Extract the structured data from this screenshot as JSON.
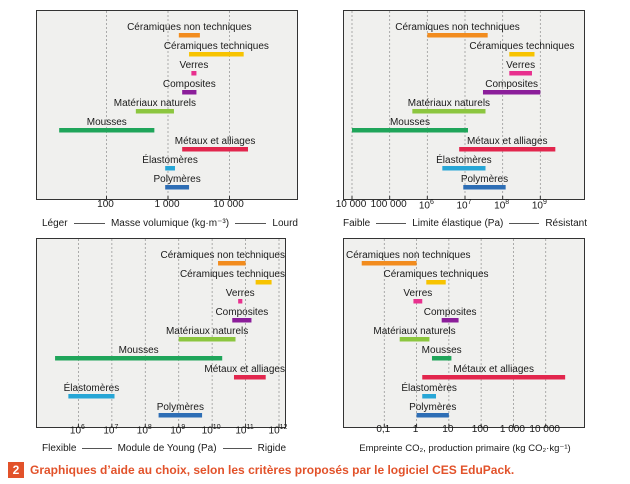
{
  "figure": {
    "number": "2",
    "caption": "Graphiques d’aide au choix, selon les critères proposés par le logiciel CES EduPack."
  },
  "chart_data": [
    {
      "type": "bar",
      "orientation": "horizontal-range",
      "scale": "log",
      "xlim": [
        10,
        100000
      ],
      "ticks": [
        {
          "value": 100,
          "label": "100"
        },
        {
          "value": 1000,
          "label": "1 000"
        },
        {
          "value": 10000,
          "label": "10 000"
        }
      ],
      "xlabel": "Masse volumique (kg·m⁻³)",
      "axis_left": "Léger",
      "axis_right": "Lourd",
      "grid": true,
      "series": [
        {
          "name": "Céramiques non techniques",
          "range": [
            1500,
            3300
          ],
          "color": "#f28c1e"
        },
        {
          "name": "Céramiques techniques",
          "range": [
            2200,
            17000
          ],
          "color": "#f7c300"
        },
        {
          "name": "Verres",
          "range": [
            2400,
            2900
          ],
          "color": "#e8308e"
        },
        {
          "name": "Composites",
          "range": [
            1700,
            2900
          ],
          "color": "#8b1e9a"
        },
        {
          "name": "Matériaux naturels",
          "range": [
            300,
            1250
          ],
          "color": "#8cc63f"
        },
        {
          "name": "Mousses",
          "range": [
            17,
            600
          ],
          "color": "#1fa55a"
        },
        {
          "name": "Métaux et alliages",
          "range": [
            1700,
            20000
          ],
          "color": "#e2264d"
        },
        {
          "name": "Élastomères",
          "range": [
            900,
            1300
          ],
          "color": "#27a6d6"
        },
        {
          "name": "Polymères",
          "range": [
            900,
            2200
          ],
          "color": "#2e6eb5"
        }
      ]
    },
    {
      "type": "bar",
      "orientation": "horizontal-range",
      "scale": "log",
      "xlim": [
        10000,
        10000000000
      ],
      "ticks": [
        {
          "value": 10000,
          "label": "10 000"
        },
        {
          "value": 100000,
          "label": "100 000"
        },
        {
          "value": 1000000,
          "label": "10",
          "exp": "6"
        },
        {
          "value": 10000000,
          "label": "10",
          "exp": "7"
        },
        {
          "value": 100000000,
          "label": "10",
          "exp": "8"
        },
        {
          "value": 1000000000,
          "label": "10",
          "exp": "9"
        }
      ],
      "xlabel": "Limite élastique (Pa)",
      "axis_left": "Faible",
      "axis_right": "Résistant",
      "grid": true,
      "series": [
        {
          "name": "Céramiques non techniques",
          "range": [
            1000000,
            40000000
          ],
          "color": "#f28c1e"
        },
        {
          "name": "Céramiques techniques",
          "range": [
            150000000,
            700000000
          ],
          "color": "#f7c300"
        },
        {
          "name": "Verres",
          "range": [
            150000000,
            600000000
          ],
          "color": "#e8308e"
        },
        {
          "name": "Composites",
          "range": [
            30000000,
            1000000000
          ],
          "color": "#8b1e9a"
        },
        {
          "name": "Matériaux naturels",
          "range": [
            400000,
            35000000
          ],
          "color": "#8cc63f"
        },
        {
          "name": "Mousses",
          "range": [
            10000,
            12000000
          ],
          "color": "#1fa55a"
        },
        {
          "name": "Métaux et alliages",
          "range": [
            7000000,
            2500000000
          ],
          "color": "#e2264d"
        },
        {
          "name": "Élastomères",
          "range": [
            2500000,
            35000000
          ],
          "color": "#27a6d6"
        },
        {
          "name": "Polymères",
          "range": [
            9000000,
            120000000
          ],
          "color": "#2e6eb5"
        }
      ]
    },
    {
      "type": "bar",
      "orientation": "horizontal-range",
      "scale": "log",
      "xlim": [
        100000,
        1000000000000
      ],
      "ticks": [
        {
          "value": 1000000,
          "label": "10",
          "exp": "6"
        },
        {
          "value": 10000000,
          "label": "10",
          "exp": "7"
        },
        {
          "value": 100000000,
          "label": "10",
          "exp": "8"
        },
        {
          "value": 1000000000,
          "label": "10",
          "exp": "9"
        },
        {
          "value": 10000000000,
          "label": "10",
          "exp": "10"
        },
        {
          "value": 100000000000,
          "label": "10",
          "exp": "11"
        },
        {
          "value": 1000000000000,
          "label": "10",
          "exp": "12"
        }
      ],
      "xlabel": "Module de Young (Pa)",
      "axis_left": "Flexible",
      "axis_right": "Rigide",
      "grid": true,
      "series": [
        {
          "name": "Céramiques non techniques",
          "range": [
            15000000000,
            100000000000
          ],
          "color": "#f28c1e"
        },
        {
          "name": "Céramiques techniques",
          "range": [
            200000000000,
            600000000000
          ],
          "color": "#f7c300"
        },
        {
          "name": "Verres",
          "range": [
            60000000000,
            80000000000
          ],
          "color": "#e8308e"
        },
        {
          "name": "Composites",
          "range": [
            40000000000,
            150000000000
          ],
          "color": "#8b1e9a"
        },
        {
          "name": "Matériaux naturels",
          "range": [
            1000000000,
            50000000000
          ],
          "color": "#8cc63f"
        },
        {
          "name": "Mousses",
          "range": [
            200000,
            20000000000
          ],
          "color": "#1fa55a"
        },
        {
          "name": "Métaux et alliages",
          "range": [
            45000000000,
            400000000000
          ],
          "color": "#e2264d"
        },
        {
          "name": "Élastomères",
          "range": [
            500000,
            12000000
          ],
          "color": "#27a6d6"
        },
        {
          "name": "Polymères",
          "range": [
            250000000,
            5000000000
          ],
          "color": "#2e6eb5"
        }
      ]
    },
    {
      "type": "bar",
      "orientation": "horizontal-range",
      "scale": "log",
      "xlim": [
        0.01,
        100000
      ],
      "ticks": [
        {
          "value": 0.1,
          "label": "0,1"
        },
        {
          "value": 1,
          "label": "1"
        },
        {
          "value": 10,
          "label": "10"
        },
        {
          "value": 100,
          "label": "100"
        },
        {
          "value": 1000,
          "label": "1 000"
        },
        {
          "value": 10000,
          "label": "10 000"
        }
      ],
      "xlabel": "Empreinte CO₂, production primaire (kg CO₂·kg⁻¹)",
      "grid": true,
      "series": [
        {
          "name": "Céramiques non techniques",
          "range": [
            0.02,
            1
          ],
          "color": "#f28c1e"
        },
        {
          "name": "Céramiques techniques",
          "range": [
            2,
            8
          ],
          "color": "#f7c300"
        },
        {
          "name": "Verres",
          "range": [
            0.8,
            1.5
          ],
          "color": "#e8308e"
        },
        {
          "name": "Composites",
          "range": [
            6,
            20
          ],
          "color": "#8b1e9a"
        },
        {
          "name": "Matériaux naturels",
          "range": [
            0.3,
            2.5
          ],
          "color": "#8cc63f"
        },
        {
          "name": "Mousses",
          "range": [
            3,
            12
          ],
          "color": "#1fa55a"
        },
        {
          "name": "Métaux et alliages",
          "range": [
            1.5,
            40000
          ],
          "color": "#e2264d"
        },
        {
          "name": "Élastomères",
          "range": [
            1.5,
            4
          ],
          "color": "#27a6d6"
        },
        {
          "name": "Polymères",
          "range": [
            1,
            10
          ],
          "color": "#2e6eb5"
        }
      ]
    }
  ]
}
